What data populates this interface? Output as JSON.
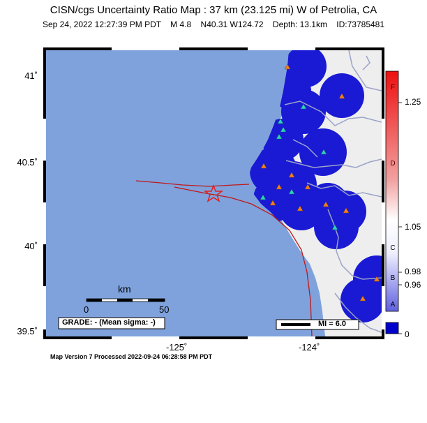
{
  "header": {
    "title": "CISN/cgs Uncertainty Ratio Map : 37 km (23.125 mi) W of Petrolia, CA",
    "subtitle": "Sep 24, 2022 12:27:39 PM PDT    M 4.8    N40.31 W124.72    Depth: 13.1km    ID:73785481"
  },
  "axes": {
    "lat_ticks": [
      "41˚",
      "40.5˚",
      "40˚",
      "39.5˚"
    ],
    "lon_ticks": [
      "-125˚",
      "-124˚"
    ]
  },
  "scale_bar": {
    "unit": "km",
    "start": "0",
    "end": "50"
  },
  "grade_box": "GRADE: - (Mean sigma: -)",
  "mi_legend": "MI = 6.0",
  "footer": "Map Version 7 Processed 2022-09-24 06:28:58 PM PDT",
  "colorbar": {
    "values": [
      "1.25",
      "1.05",
      "0.98",
      "0.96",
      "0"
    ],
    "letters": [
      "F",
      "D",
      "C",
      "B",
      "A"
    ]
  },
  "colors": {
    "ocean": "#7fa2dc",
    "land": "#eeeeee",
    "uncertainty": "#1a1ad4",
    "fault": "#c01818",
    "epicenter": "#e02020",
    "river": "#9aa3c8",
    "station_seismic": "#f08020",
    "station_strong": "#30d0c0"
  }
}
